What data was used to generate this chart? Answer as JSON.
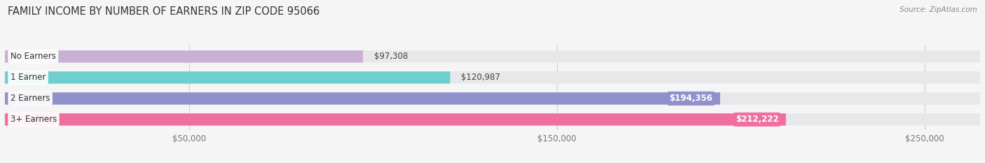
{
  "title": "FAMILY INCOME BY NUMBER OF EARNERS IN ZIP CODE 95066",
  "source": "Source: ZipAtlas.com",
  "categories": [
    "No Earners",
    "1 Earner",
    "2 Earners",
    "3+ Earners"
  ],
  "values": [
    97308,
    120987,
    194356,
    212222
  ],
  "bar_colors": [
    "#c9b0d4",
    "#6ecfcc",
    "#9090cc",
    "#f06fa0"
  ],
  "bar_bg_color": "#e8e8ea",
  "value_labels": [
    "$97,308",
    "$120,987",
    "$194,356",
    "$212,222"
  ],
  "value_inside": [
    false,
    false,
    true,
    true
  ],
  "x_tick_labels": [
    "$50,000",
    "$150,000",
    "$250,000"
  ],
  "x_tick_values": [
    50000,
    150000,
    250000
  ],
  "x_max": 265000,
  "background_color": "#f5f5f5",
  "title_fontsize": 10.5,
  "label_fontsize": 8.5,
  "tick_fontsize": 8.5,
  "source_fontsize": 7.5
}
